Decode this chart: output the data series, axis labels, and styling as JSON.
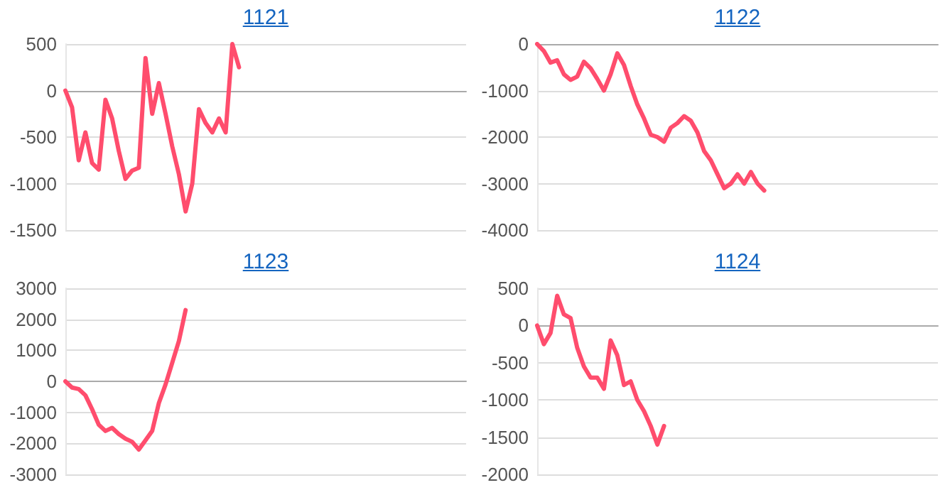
{
  "chart_data": [
    {
      "type": "line",
      "title": "1121",
      "categories": [
        null,
        null,
        null,
        null,
        null,
        null,
        null,
        null,
        null,
        null,
        null,
        null,
        null,
        null,
        null,
        null,
        null,
        null,
        null,
        null,
        null,
        null,
        null,
        null,
        null,
        null,
        null,
        null,
        null,
        null,
        null,
        null,
        null,
        null,
        null,
        null,
        null,
        null,
        null,
        null,
        null,
        null,
        null,
        null,
        null,
        null,
        null,
        null,
        null,
        null,
        null,
        null,
        null,
        null,
        null,
        null,
        null,
        null,
        null,
        null,
        null
      ],
      "values": [
        0,
        -180,
        -750,
        -450,
        -780,
        -850,
        -100,
        -300,
        -650,
        -950,
        -860,
        -830,
        350,
        -250,
        80,
        -250,
        -600,
        -900,
        -1300,
        -1000,
        -200,
        -350,
        -450,
        -300,
        -450,
        500,
        250,
        null,
        null,
        null,
        null,
        null,
        null,
        null,
        null,
        null,
        null,
        null,
        null,
        null,
        null,
        null,
        null,
        null,
        null,
        null,
        null,
        null,
        null,
        null,
        null,
        null,
        null,
        null,
        null,
        null,
        null,
        null,
        null,
        null,
        null
      ],
      "color": "#ff4d6d",
      "ylim": [
        -1500,
        500
      ],
      "yticks": [
        -1500,
        -1000,
        -500,
        0,
        500
      ],
      "grid": "y",
      "line_style": "solid"
    },
    {
      "type": "line",
      "title": "1122",
      "categories": [
        null,
        null,
        null,
        null,
        null,
        null,
        null,
        null,
        null,
        null,
        null,
        null,
        null,
        null,
        null,
        null,
        null,
        null,
        null,
        null,
        null,
        null,
        null,
        null,
        null,
        null,
        null,
        null,
        null,
        null,
        null,
        null,
        null,
        null,
        null,
        null,
        null,
        null,
        null,
        null,
        null,
        null,
        null,
        null,
        null,
        null,
        null,
        null,
        null,
        null,
        null,
        null,
        null,
        null,
        null,
        null,
        null,
        null,
        null,
        null,
        null
      ],
      "values": [
        0,
        -150,
        -400,
        -350,
        -650,
        -770,
        -700,
        -380,
        -520,
        -750,
        -1000,
        -650,
        -200,
        -450,
        -900,
        -1300,
        -1600,
        -1950,
        -2000,
        -2100,
        -1800,
        -1700,
        -1550,
        -1650,
        -1900,
        -2300,
        -2500,
        -2800,
        -3100,
        -3000,
        -2800,
        -3000,
        -2750,
        -3000,
        -3150,
        null,
        null,
        null,
        null,
        null,
        null,
        null,
        null,
        null,
        null,
        null,
        null,
        null,
        null,
        null,
        null,
        null,
        null,
        null,
        null,
        null,
        null,
        null,
        null,
        null,
        null
      ],
      "color": "#ff4d6d",
      "ylim": [
        -4000,
        0
      ],
      "yticks": [
        -4000,
        -3000,
        -2000,
        -1000,
        0
      ],
      "grid": "y",
      "line_style": "solid"
    },
    {
      "type": "line",
      "title": "1123",
      "categories": [
        null,
        null,
        null,
        null,
        null,
        null,
        null,
        null,
        null,
        null,
        null,
        null,
        null,
        null,
        null,
        null,
        null,
        null,
        null,
        null,
        null,
        null,
        null,
        null,
        null,
        null,
        null,
        null,
        null,
        null,
        null,
        null,
        null,
        null,
        null,
        null,
        null,
        null,
        null,
        null,
        null,
        null,
        null,
        null,
        null,
        null,
        null,
        null,
        null,
        null,
        null,
        null,
        null,
        null,
        null,
        null,
        null,
        null,
        null,
        null,
        null
      ],
      "values": [
        0,
        -200,
        -250,
        -450,
        -900,
        -1400,
        -1600,
        -1500,
        -1700,
        -1850,
        -1950,
        -2200,
        -1900,
        -1600,
        -700,
        -100,
        600,
        1300,
        2300,
        null,
        null,
        null,
        null,
        null,
        null,
        null,
        null,
        null,
        null,
        null,
        null,
        null,
        null,
        null,
        null,
        null,
        null,
        null,
        null,
        null,
        null,
        null,
        null,
        null,
        null,
        null,
        null,
        null,
        null,
        null,
        null,
        null,
        null,
        null,
        null,
        null,
        null,
        null,
        null,
        null,
        null
      ],
      "color": "#ff4d6d",
      "ylim": [
        -3000,
        3000
      ],
      "yticks": [
        -3000,
        -2000,
        -1000,
        0,
        1000,
        2000,
        3000
      ],
      "grid": "y",
      "line_style": "solid"
    },
    {
      "type": "line",
      "title": "1124",
      "categories": [
        null,
        null,
        null,
        null,
        null,
        null,
        null,
        null,
        null,
        null,
        null,
        null,
        null,
        null,
        null,
        null,
        null,
        null,
        null,
        null,
        null,
        null,
        null,
        null,
        null,
        null,
        null,
        null,
        null,
        null,
        null,
        null,
        null,
        null,
        null,
        null,
        null,
        null,
        null,
        null,
        null,
        null,
        null,
        null,
        null,
        null,
        null,
        null,
        null,
        null,
        null,
        null,
        null,
        null,
        null,
        null,
        null,
        null,
        null,
        null,
        null
      ],
      "values": [
        0,
        -250,
        -100,
        400,
        150,
        100,
        -300,
        -550,
        -700,
        -700,
        -850,
        -200,
        -400,
        -800,
        -750,
        -1000,
        -1150,
        -1350,
        -1600,
        -1350,
        null,
        null,
        null,
        null,
        null,
        null,
        null,
        null,
        null,
        null,
        null,
        null,
        null,
        null,
        null,
        null,
        null,
        null,
        null,
        null,
        null,
        null,
        null,
        null,
        null,
        null,
        null,
        null,
        null,
        null,
        null,
        null,
        null,
        null,
        null,
        null,
        null,
        null,
        null,
        null,
        null
      ],
      "color": "#ff4d6d",
      "ylim": [
        -2000,
        500
      ],
      "yticks": [
        -2000,
        -1500,
        -1000,
        -500,
        0,
        500
      ],
      "grid": "y",
      "line_style": "solid"
    }
  ]
}
